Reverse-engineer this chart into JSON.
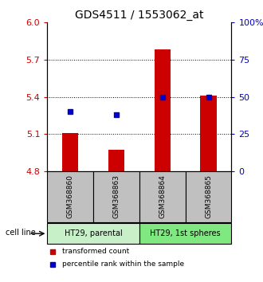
{
  "title": "GDS4511 / 1553062_at",
  "samples": [
    "GSM368860",
    "GSM368863",
    "GSM368864",
    "GSM368865"
  ],
  "groups": [
    {
      "label": "HT29, parental",
      "color": "#c8f0c8",
      "indices": [
        0,
        1
      ]
    },
    {
      "label": "HT29, 1st spheres",
      "color": "#80e880",
      "indices": [
        2,
        3
      ]
    }
  ],
  "red_values": [
    5.11,
    4.97,
    5.78,
    5.41
  ],
  "blue_percentiles": [
    40,
    38,
    50,
    50
  ],
  "baseline": 4.8,
  "ylim_left": [
    4.8,
    6.0
  ],
  "ylim_right": [
    0,
    100
  ],
  "yticks_left": [
    4.8,
    5.1,
    5.4,
    5.7,
    6.0
  ],
  "yticks_right": [
    0,
    25,
    50,
    75,
    100
  ],
  "ytick_labels_right": [
    "0",
    "25",
    "50",
    "75",
    "100%"
  ],
  "grid_values": [
    5.1,
    5.4,
    5.7
  ],
  "bar_color": "#cc0000",
  "dot_color": "#0000cc",
  "bar_width": 0.35,
  "sample_box_color": "#c0c0c0",
  "cell_line_label": "cell line",
  "legend_red": "transformed count",
  "legend_blue": "percentile rank within the sample"
}
